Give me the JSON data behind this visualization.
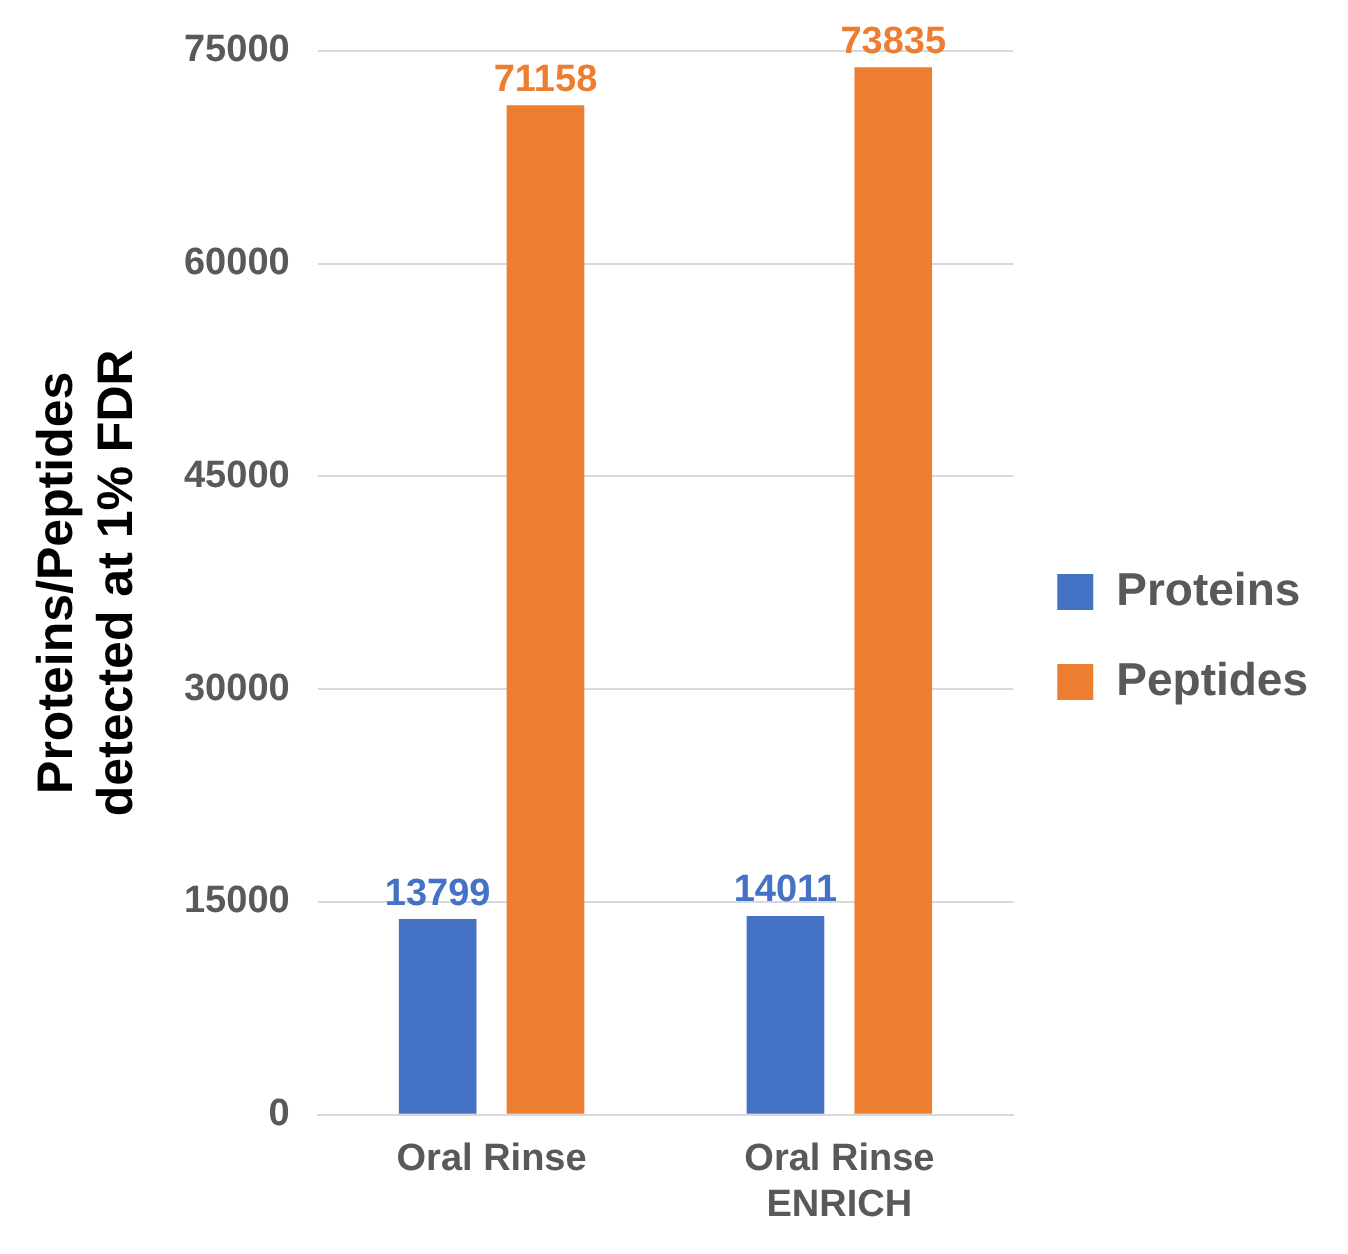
{
  "chart_data": {
    "type": "bar",
    "ylabel": "Proteins/Peptides detected at 1% FDR",
    "categories": [
      "Oral Rinse",
      "Oral Rinse ENRICH"
    ],
    "series": [
      {
        "name": "Proteins",
        "color": "#4472c4",
        "values": [
          13799,
          14011
        ]
      },
      {
        "name": "Peptides",
        "color": "#ed7d31",
        "values": [
          71158,
          73835
        ]
      }
    ],
    "ylim": [
      0,
      75000
    ],
    "yticks": [
      0,
      15000,
      30000,
      45000,
      60000,
      75000
    ],
    "grid": "y",
    "legend": "right",
    "data_labels": true
  }
}
